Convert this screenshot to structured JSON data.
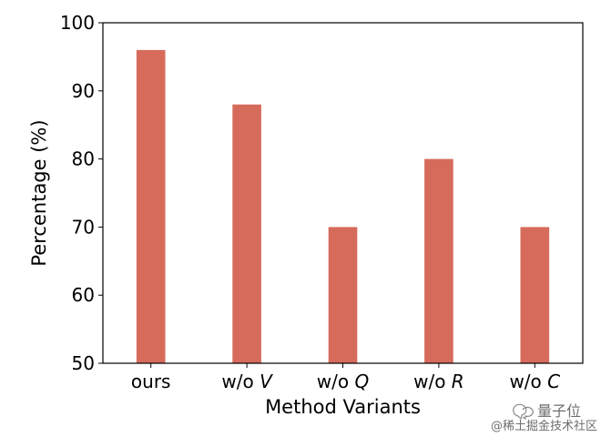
{
  "chart_data": {
    "type": "bar",
    "categories": [
      {
        "prefix": "",
        "italic": ""
      },
      {
        "prefix": "w/o ",
        "italic": "V"
      },
      {
        "prefix": "w/o ",
        "italic": "Q"
      },
      {
        "prefix": "w/o ",
        "italic": "R"
      },
      {
        "prefix": "w/o ",
        "italic": "C"
      }
    ],
    "category_labels_plain": [
      "ours",
      "w/o V",
      "w/o Q",
      "w/o R",
      "w/o C"
    ],
    "values": [
      96,
      88,
      70,
      80,
      70
    ],
    "xlabel": "Method Variants",
    "ylabel": "Percentage (%)",
    "ylim": [
      50,
      100
    ],
    "yticks": [
      50,
      60,
      70,
      80,
      90,
      100
    ],
    "bar_color": "#d66b5c",
    "grid": false,
    "legend": "none"
  },
  "watermark": {
    "brand": "量子位",
    "community": "@稀土掘金技术社区"
  }
}
